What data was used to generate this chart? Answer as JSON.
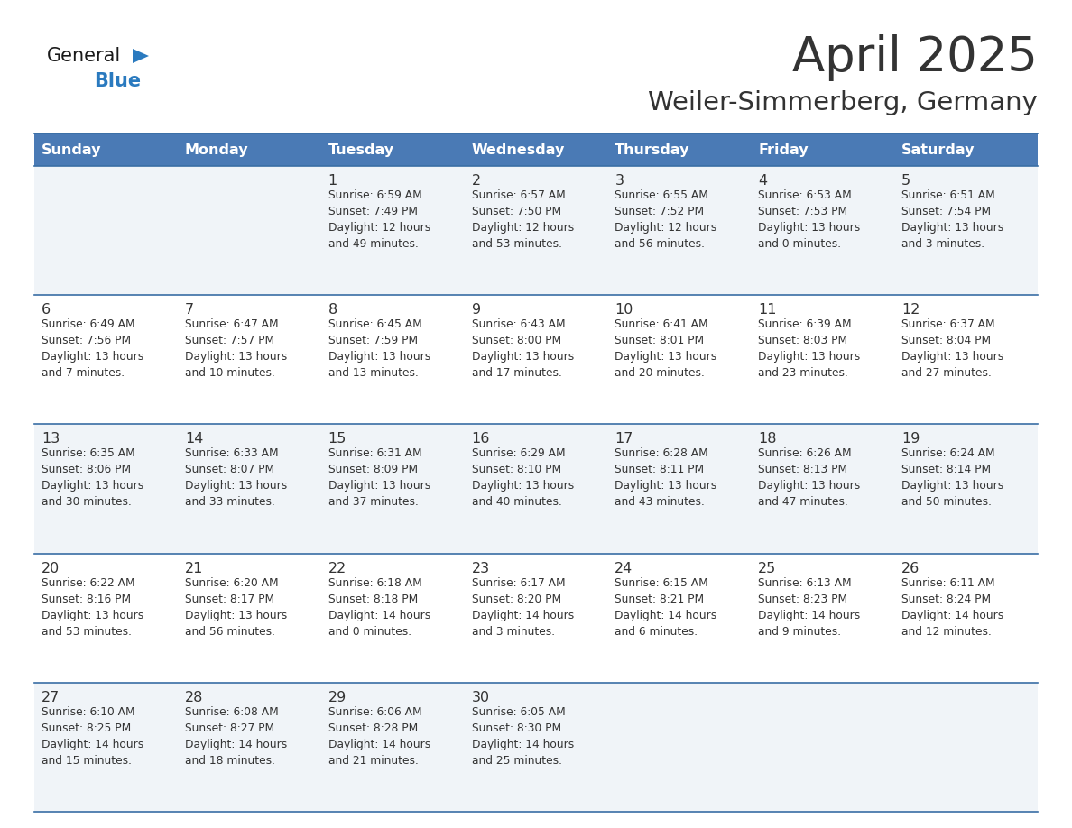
{
  "title": "April 2025",
  "subtitle": "Weiler-Simmerberg, Germany",
  "header_bg": "#4a7ab5",
  "header_text": "#ffffff",
  "row_bg_odd": "#f0f4f8",
  "row_bg_even": "#ffffff",
  "border_color": "#3a6ea5",
  "text_color": "#333333",
  "days_of_week": [
    "Sunday",
    "Monday",
    "Tuesday",
    "Wednesday",
    "Thursday",
    "Friday",
    "Saturday"
  ],
  "weeks": [
    [
      {
        "day": "",
        "info": ""
      },
      {
        "day": "",
        "info": ""
      },
      {
        "day": "1",
        "info": "Sunrise: 6:59 AM\nSunset: 7:49 PM\nDaylight: 12 hours\nand 49 minutes."
      },
      {
        "day": "2",
        "info": "Sunrise: 6:57 AM\nSunset: 7:50 PM\nDaylight: 12 hours\nand 53 minutes."
      },
      {
        "day": "3",
        "info": "Sunrise: 6:55 AM\nSunset: 7:52 PM\nDaylight: 12 hours\nand 56 minutes."
      },
      {
        "day": "4",
        "info": "Sunrise: 6:53 AM\nSunset: 7:53 PM\nDaylight: 13 hours\nand 0 minutes."
      },
      {
        "day": "5",
        "info": "Sunrise: 6:51 AM\nSunset: 7:54 PM\nDaylight: 13 hours\nand 3 minutes."
      }
    ],
    [
      {
        "day": "6",
        "info": "Sunrise: 6:49 AM\nSunset: 7:56 PM\nDaylight: 13 hours\nand 7 minutes."
      },
      {
        "day": "7",
        "info": "Sunrise: 6:47 AM\nSunset: 7:57 PM\nDaylight: 13 hours\nand 10 minutes."
      },
      {
        "day": "8",
        "info": "Sunrise: 6:45 AM\nSunset: 7:59 PM\nDaylight: 13 hours\nand 13 minutes."
      },
      {
        "day": "9",
        "info": "Sunrise: 6:43 AM\nSunset: 8:00 PM\nDaylight: 13 hours\nand 17 minutes."
      },
      {
        "day": "10",
        "info": "Sunrise: 6:41 AM\nSunset: 8:01 PM\nDaylight: 13 hours\nand 20 minutes."
      },
      {
        "day": "11",
        "info": "Sunrise: 6:39 AM\nSunset: 8:03 PM\nDaylight: 13 hours\nand 23 minutes."
      },
      {
        "day": "12",
        "info": "Sunrise: 6:37 AM\nSunset: 8:04 PM\nDaylight: 13 hours\nand 27 minutes."
      }
    ],
    [
      {
        "day": "13",
        "info": "Sunrise: 6:35 AM\nSunset: 8:06 PM\nDaylight: 13 hours\nand 30 minutes."
      },
      {
        "day": "14",
        "info": "Sunrise: 6:33 AM\nSunset: 8:07 PM\nDaylight: 13 hours\nand 33 minutes."
      },
      {
        "day": "15",
        "info": "Sunrise: 6:31 AM\nSunset: 8:09 PM\nDaylight: 13 hours\nand 37 minutes."
      },
      {
        "day": "16",
        "info": "Sunrise: 6:29 AM\nSunset: 8:10 PM\nDaylight: 13 hours\nand 40 minutes."
      },
      {
        "day": "17",
        "info": "Sunrise: 6:28 AM\nSunset: 8:11 PM\nDaylight: 13 hours\nand 43 minutes."
      },
      {
        "day": "18",
        "info": "Sunrise: 6:26 AM\nSunset: 8:13 PM\nDaylight: 13 hours\nand 47 minutes."
      },
      {
        "day": "19",
        "info": "Sunrise: 6:24 AM\nSunset: 8:14 PM\nDaylight: 13 hours\nand 50 minutes."
      }
    ],
    [
      {
        "day": "20",
        "info": "Sunrise: 6:22 AM\nSunset: 8:16 PM\nDaylight: 13 hours\nand 53 minutes."
      },
      {
        "day": "21",
        "info": "Sunrise: 6:20 AM\nSunset: 8:17 PM\nDaylight: 13 hours\nand 56 minutes."
      },
      {
        "day": "22",
        "info": "Sunrise: 6:18 AM\nSunset: 8:18 PM\nDaylight: 14 hours\nand 0 minutes."
      },
      {
        "day": "23",
        "info": "Sunrise: 6:17 AM\nSunset: 8:20 PM\nDaylight: 14 hours\nand 3 minutes."
      },
      {
        "day": "24",
        "info": "Sunrise: 6:15 AM\nSunset: 8:21 PM\nDaylight: 14 hours\nand 6 minutes."
      },
      {
        "day": "25",
        "info": "Sunrise: 6:13 AM\nSunset: 8:23 PM\nDaylight: 14 hours\nand 9 minutes."
      },
      {
        "day": "26",
        "info": "Sunrise: 6:11 AM\nSunset: 8:24 PM\nDaylight: 14 hours\nand 12 minutes."
      }
    ],
    [
      {
        "day": "27",
        "info": "Sunrise: 6:10 AM\nSunset: 8:25 PM\nDaylight: 14 hours\nand 15 minutes."
      },
      {
        "day": "28",
        "info": "Sunrise: 6:08 AM\nSunset: 8:27 PM\nDaylight: 14 hours\nand 18 minutes."
      },
      {
        "day": "29",
        "info": "Sunrise: 6:06 AM\nSunset: 8:28 PM\nDaylight: 14 hours\nand 21 minutes."
      },
      {
        "day": "30",
        "info": "Sunrise: 6:05 AM\nSunset: 8:30 PM\nDaylight: 14 hours\nand 25 minutes."
      },
      {
        "day": "",
        "info": ""
      },
      {
        "day": "",
        "info": ""
      },
      {
        "day": "",
        "info": ""
      }
    ]
  ],
  "logo_general_color": "#1a1a1a",
  "logo_blue_color": "#2a7abf",
  "fig_width": 11.88,
  "fig_height": 9.18,
  "dpi": 100
}
